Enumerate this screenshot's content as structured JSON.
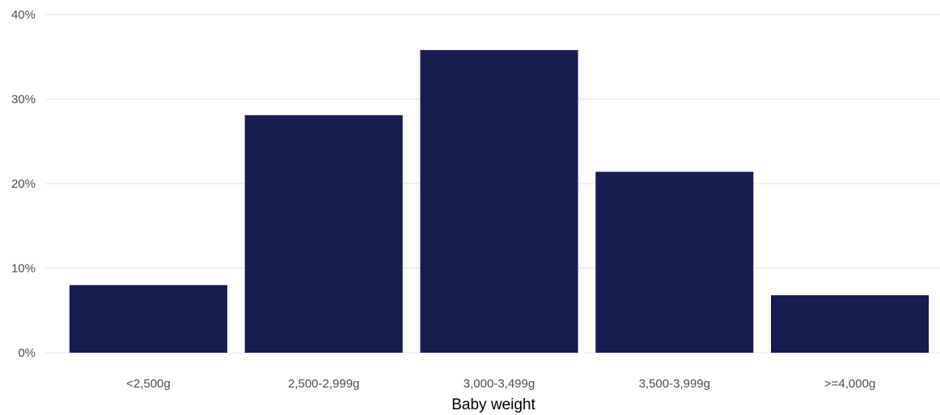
{
  "chart_data": {
    "type": "bar",
    "categories": [
      "<2,500g",
      "2,500-2,999g",
      "3,000-3,499g",
      "3,500-3,999g",
      ">=4,000g"
    ],
    "values": [
      8.0,
      28.1,
      35.8,
      21.4,
      6.8
    ],
    "title": "",
    "xlabel": "Baby weight",
    "ylabel": "",
    "ylim": [
      0,
      40
    ],
    "yticks": [
      0,
      10,
      20,
      30,
      40
    ],
    "ytick_labels": [
      "0%",
      "10%",
      "20%",
      "30%",
      "40%"
    ],
    "grid": true,
    "legend": "none",
    "bar_color": "#171d4f"
  }
}
